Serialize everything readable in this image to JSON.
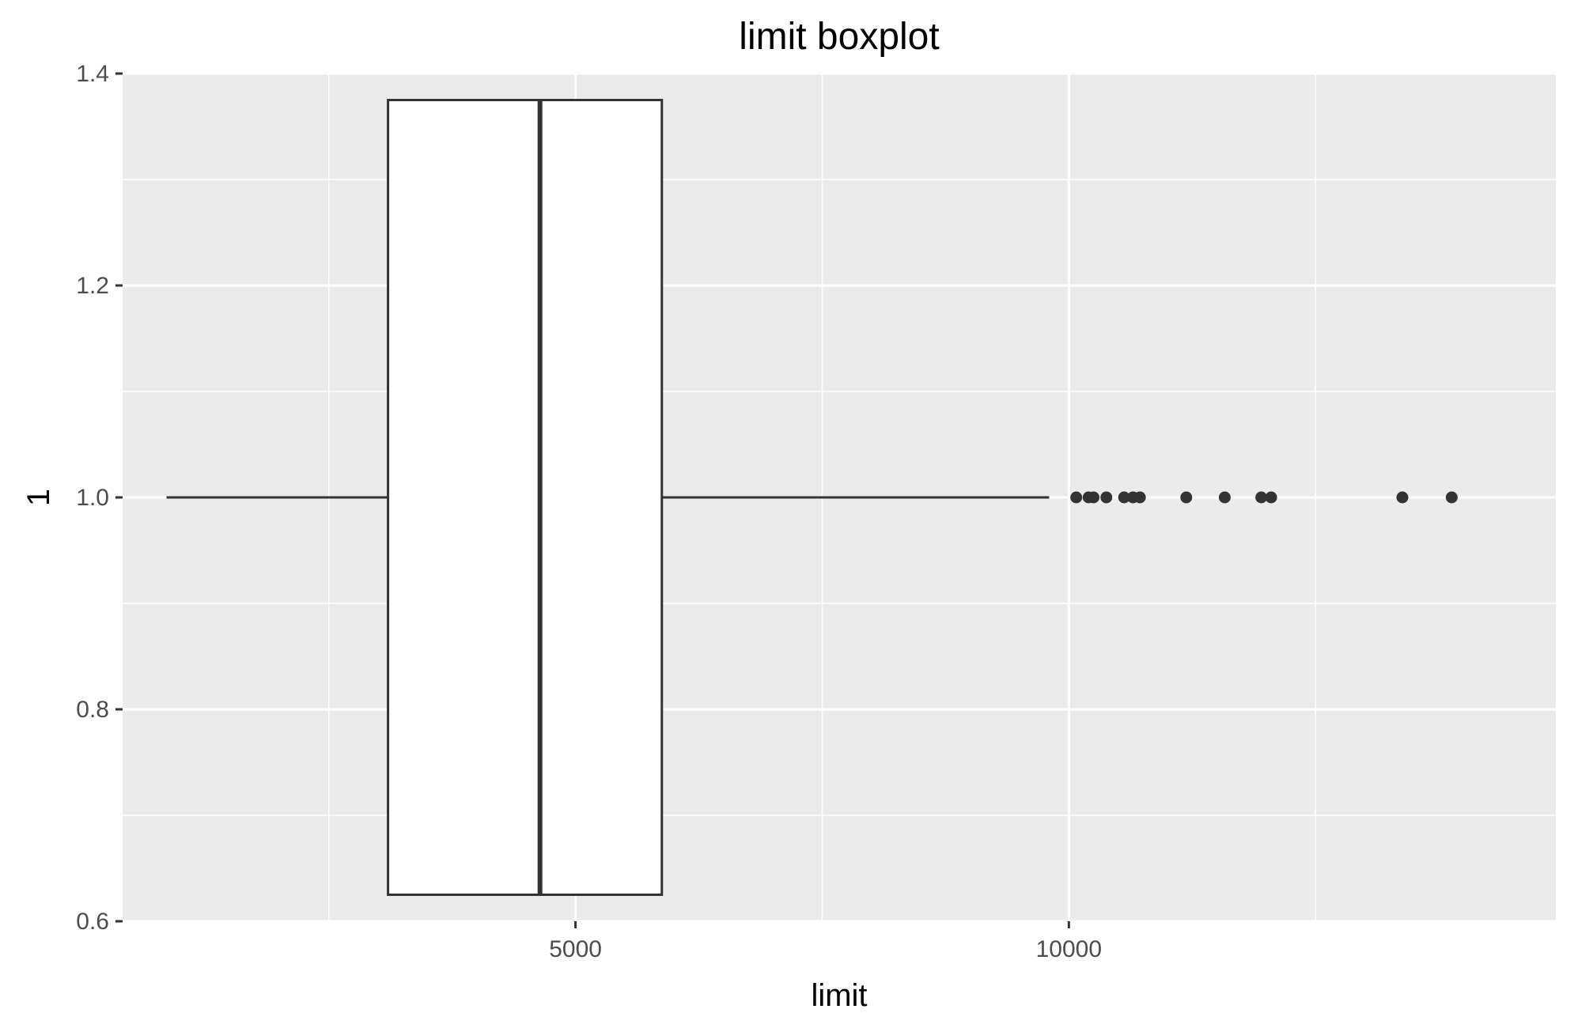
{
  "chart_data": {
    "type": "boxplot",
    "title": "limit boxplot",
    "xlabel": "limit",
    "ylabel": "1",
    "xlim": [
      410,
      14935
    ],
    "ylim": [
      0.6,
      1.4
    ],
    "x_major_ticks": [
      5000,
      10000
    ],
    "x_minor_ticks": [
      2500,
      7500,
      12500
    ],
    "y_major_ticks": [
      0.6,
      0.8,
      1.0,
      1.2,
      1.4
    ],
    "y_minor_ticks": [
      0.7,
      0.9,
      1.1,
      1.3
    ],
    "x_tick_labels": [
      "5000",
      "10000"
    ],
    "y_tick_labels": [
      "0.6",
      "0.8",
      "1.0",
      "1.2",
      "1.4"
    ],
    "grid": true,
    "box": {
      "y": 1.0,
      "whisker_low": 855,
      "q1": 3100,
      "median": 4640,
      "q3": 5875,
      "whisker_high": 9800,
      "ymin": 0.625,
      "ymax": 1.375
    },
    "outliers": [
      10075,
      10200,
      10250,
      10380,
      10560,
      10650,
      10720,
      11190,
      11580,
      11950,
      12050,
      13380,
      13880
    ],
    "colors": {
      "panel": "#ebebeb",
      "grid": "#ffffff",
      "box_fill": "#ffffff",
      "box_line": "#333333",
      "outlier": "#333333"
    }
  }
}
